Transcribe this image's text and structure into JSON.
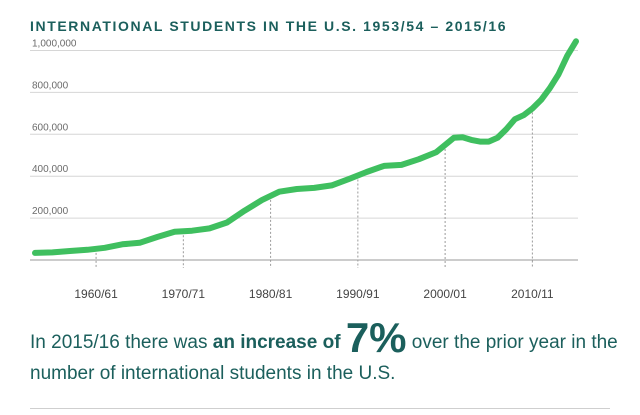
{
  "chart_data": {
    "type": "line",
    "title": "INTERNATIONAL STUDENTS IN THE U.S. 1953/54 – 2015/16",
    "xlabel": "",
    "ylabel": "",
    "x_ticks": [
      "1960/61",
      "1970/71",
      "1980/81",
      "1990/91",
      "2000/01",
      "2010/11"
    ],
    "y_ticks": [
      "200,000",
      "400,000",
      "600,000",
      "800,000",
      "1,000,000"
    ],
    "ylim": [
      0,
      1050000
    ],
    "grid": true,
    "color": "#3fbf5f",
    "x": [
      "1953/54",
      "1955/56",
      "1957/58",
      "1959/60",
      "1961/62",
      "1963/64",
      "1965/66",
      "1967/68",
      "1969/70",
      "1971/72",
      "1973/74",
      "1975/76",
      "1977/78",
      "1979/80",
      "1981/82",
      "1983/84",
      "1985/86",
      "1987/88",
      "1989/90",
      "1991/92",
      "1993/94",
      "1995/96",
      "1997/98",
      "1999/00",
      "2001/02",
      "2002/03",
      "2003/04",
      "2004/05",
      "2005/06",
      "2006/07",
      "2007/08",
      "2008/09",
      "2009/10",
      "2010/11",
      "2011/12",
      "2012/13",
      "2013/14",
      "2014/15",
      "2015/16"
    ],
    "values": [
      34000,
      36500,
      43000,
      48500,
      58000,
      75000,
      82000,
      110000,
      135000,
      140000,
      151000,
      179000,
      235000,
      286000,
      326000,
      339000,
      344000,
      356000,
      387000,
      420000,
      449000,
      454000,
      481000,
      515000,
      583000,
      586000,
      573000,
      565000,
      565000,
      583000,
      624000,
      672000,
      691000,
      723000,
      764000,
      820000,
      886000,
      975000,
      1044000
    ],
    "annotation_lines": [
      "1960/61",
      "1970/71",
      "1980/81",
      "1990/91",
      "2000/01",
      "2010/11"
    ]
  },
  "caption": {
    "part1": "In 2015/16 there was ",
    "bold": "an increase of",
    "big": "7%",
    "part2": " over the prior year in the number of international students in the U.S."
  }
}
